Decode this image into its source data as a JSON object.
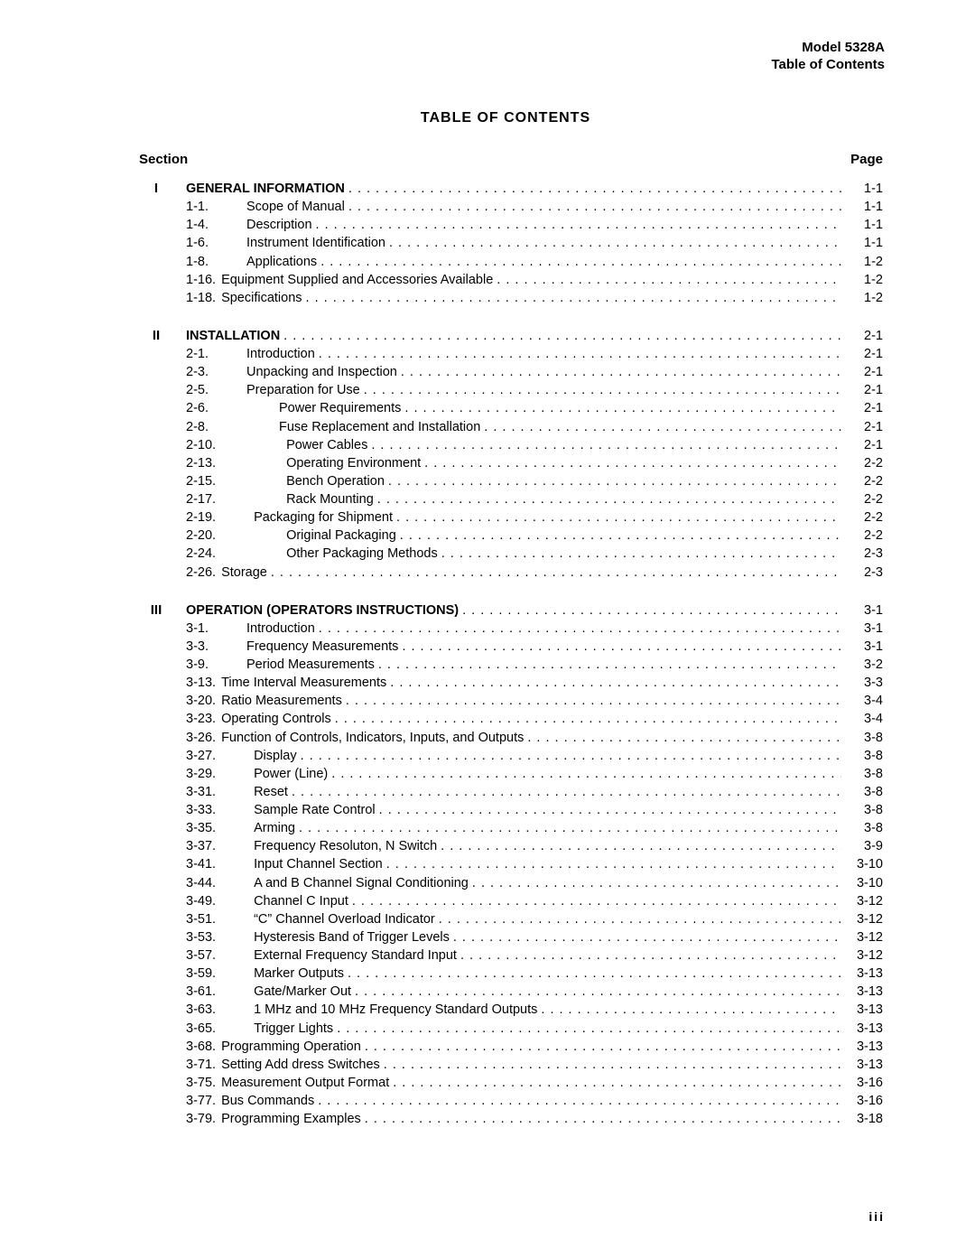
{
  "header": {
    "model": "Model 5328A",
    "subtitle": "Table of Contents"
  },
  "title": "TABLE  OF  CONTENTS",
  "columns": {
    "left": "Section",
    "right": "Page"
  },
  "footer": "iii",
  "sections": [
    {
      "roman": "I",
      "rows": [
        {
          "num": "",
          "label": "GENERAL INFORMATION",
          "bold": true,
          "page": "1-1",
          "indent": 0
        },
        {
          "num": "1-1.",
          "label": "Scope of Manual",
          "page": "1-1",
          "indent": 1
        },
        {
          "num": "1-4.",
          "label": "Description",
          "page": "1-1",
          "indent": 1
        },
        {
          "num": "1-6.",
          "label": "Instrument  Identification",
          "page": "1-1",
          "indent": 1
        },
        {
          "num": "1-8.",
          "label": "Applications",
          "page": "1-2",
          "indent": 1
        },
        {
          "num": "1-16.",
          "label": "Equipment Supplied and Accessories Available",
          "page": "1-2",
          "indent": 0
        },
        {
          "num": "1-18.",
          "label": "Specifications",
          "page": "1-2",
          "indent": 0
        }
      ]
    },
    {
      "roman": "II",
      "rows": [
        {
          "num": "",
          "label": "INSTALLATION",
          "bold": true,
          "page": "2-1",
          "indent": 0
        },
        {
          "num": "2-1.",
          "label": "Introduction",
          "page": "2-1",
          "indent": 1
        },
        {
          "num": "2-3.",
          "label": "Unpacking and Inspection",
          "page": "2-1",
          "indent": 1
        },
        {
          "num": "2-5.",
          "label": "Preparation for Use",
          "page": "2-1",
          "indent": 1
        },
        {
          "num": "2-6.",
          "label": "Power Requirements",
          "page": "2-1",
          "indent": 2
        },
        {
          "num": "2-8.",
          "label": "Fuse Replacement and Installation",
          "page": "2-1",
          "indent": 2
        },
        {
          "num": "2-10.",
          "label": "Power Cables",
          "page": "2-1",
          "indent": 2
        },
        {
          "num": "2-13.",
          "label": "Operating Environment",
          "page": "2-2",
          "indent": 2
        },
        {
          "num": "2-15.",
          "label": "Bench Operation",
          "page": "2-2",
          "indent": 2
        },
        {
          "num": "2-17.",
          "label": "Rack Mounting",
          "page": "2-2",
          "indent": 2
        },
        {
          "num": "2-19.",
          "label": "Packaging for Shipment",
          "page": "2-2",
          "indent": 1
        },
        {
          "num": "2-20.",
          "label": "Original Packaging",
          "page": "2-2",
          "indent": 2
        },
        {
          "num": "2-24.",
          "label": "Other Packaging Methods",
          "page": "2-3",
          "indent": 2
        },
        {
          "num": "2-26.",
          "label": "Storage",
          "page": "2-3",
          "indent": 0
        }
      ]
    },
    {
      "roman": "III",
      "rows": [
        {
          "num": "",
          "label": "OPERATION (OPERATORS INSTRUCTIONS)",
          "bold": true,
          "page": "3-1",
          "indent": 0
        },
        {
          "num": "3-1.",
          "label": "Introduction",
          "page": "3-1",
          "indent": 1
        },
        {
          "num": "3-3.",
          "label": "Frequency  Measurements",
          "page": "3-1",
          "indent": 1
        },
        {
          "num": "3-9.",
          "label": "Period Measurements",
          "page": "3-2",
          "indent": 1
        },
        {
          "num": "3-13.",
          "label": "Time Interval Measurements",
          "page": "3-3",
          "indent": 0
        },
        {
          "num": "3-20.",
          "label": "Ratio Measurements",
          "page": "3-4",
          "indent": 0
        },
        {
          "num": "3-23.",
          "label": "Operating  Controls",
          "page": "3-4",
          "indent": 0
        },
        {
          "num": "3-26.",
          "label": "Function of Controls, Indicators, Inputs, and Outputs",
          "page": "3-8",
          "indent": 0
        },
        {
          "num": "3-27.",
          "label": "Display",
          "page": "3-8",
          "indent": 1
        },
        {
          "num": "3-29.",
          "label": "Power (Line)",
          "page": "3-8",
          "indent": 1
        },
        {
          "num": "3-31.",
          "label": "Reset",
          "page": "3-8",
          "indent": 1
        },
        {
          "num": "3-33.",
          "label": "Sample Rate Control",
          "page": "3-8",
          "indent": 1
        },
        {
          "num": "3-35.",
          "label": "Arming",
          "page": "3-8",
          "indent": 1
        },
        {
          "num": "3-37.",
          "label": "Frequency Resoluton, N Switch",
          "page": "3-9",
          "indent": 1
        },
        {
          "num": "3-41.",
          "label": "Input Channel Section",
          "page": "3-10",
          "indent": 1
        },
        {
          "num": "3-44.",
          "label": "A and B Channel Signal Conditioning",
          "page": "3-10",
          "indent": 1
        },
        {
          "num": "3-49.",
          "label": "Channel C Input",
          "page": "3-12",
          "indent": 1
        },
        {
          "num": "3-51.",
          "label": "“C” Channel Overload Indicator",
          "page": "3-12",
          "indent": 1
        },
        {
          "num": "3-53.",
          "label": "Hysteresis Band of Trigger Levels",
          "page": "3-12",
          "indent": 1
        },
        {
          "num": "3-57.",
          "label": "External Frequency Standard Input",
          "page": "3-12",
          "indent": 1
        },
        {
          "num": "3-59.",
          "label": "Marker  Outputs",
          "page": "3-13",
          "indent": 1
        },
        {
          "num": "3-61.",
          "label": "Gate/Marker Out",
          "page": "3-13",
          "indent": 1
        },
        {
          "num": "3-63.",
          "label": "1 MHz and 10 MHz Frequency Standard Outputs",
          "page": "3-13",
          "indent": 1
        },
        {
          "num": "3-65.",
          "label": "Trigger Lights",
          "page": "3-13",
          "indent": 1
        },
        {
          "num": "3-68.",
          "label": "Programming  Operation",
          "page": "3-13",
          "indent": 0
        },
        {
          "num": "3-71.",
          "label": "Setting Add dress Switches",
          "page": "3-13",
          "indent": 0
        },
        {
          "num": "3-75.",
          "label": "Measurement Output Format",
          "page": "3-16",
          "indent": 0
        },
        {
          "num": "3-77.",
          "label": "Bus Commands",
          "page": "3-16",
          "indent": 0
        },
        {
          "num": "3-79.",
          "label": "Programming Examples",
          "page": "3-18",
          "indent": 0
        }
      ]
    }
  ]
}
